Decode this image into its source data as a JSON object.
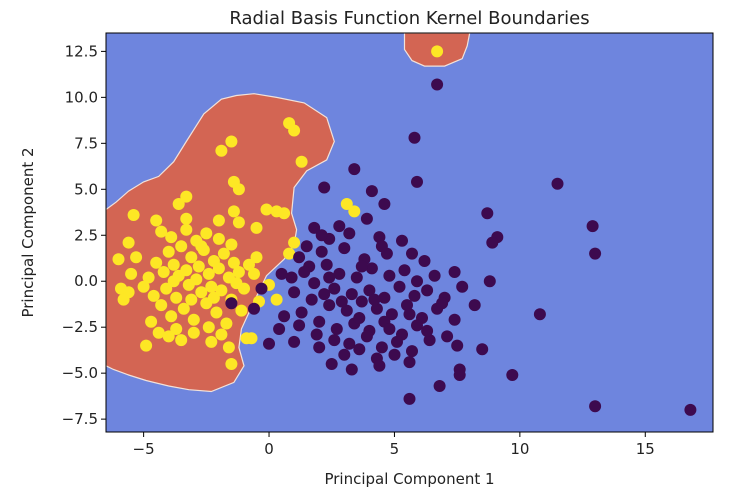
{
  "chart_data": {
    "type": "scatter",
    "title": "Radial Basis Function Kernel Boundaries",
    "xlabel": "Principal Component 1",
    "ylabel": "Principal Component 2",
    "xlim": [
      -6.5,
      17.7
    ],
    "ylim": [
      -8.2,
      13.5
    ],
    "x_ticks": [
      -5,
      0,
      5,
      10,
      15
    ],
    "x_tick_labels": [
      "−5",
      "0",
      "5",
      "10",
      "15"
    ],
    "y_ticks": [
      -7.5,
      -5.0,
      -2.5,
      0.0,
      2.5,
      5.0,
      7.5,
      10.0,
      12.5
    ],
    "y_tick_labels": [
      "−7.5",
      "−5.0",
      "−2.5",
      "0.0",
      "2.5",
      "5.0",
      "7.5",
      "10.0",
      "12.5"
    ],
    "grid": false,
    "colors": {
      "background_region": "#6e85de",
      "decision_region": "#d36553",
      "decision_edge": "#f2e2da",
      "class_0": "#3d0a4f",
      "class_1": "#fde725"
    },
    "decision_regions": [
      {
        "class": 1,
        "polygon": [
          [
            -6.5,
            3.9
          ],
          [
            -6.1,
            4.3
          ],
          [
            -5.6,
            4.9
          ],
          [
            -5.0,
            5.4
          ],
          [
            -4.4,
            5.7
          ],
          [
            -3.8,
            6.5
          ],
          [
            -3.3,
            7.6
          ],
          [
            -2.6,
            9.1
          ],
          [
            -1.9,
            9.9
          ],
          [
            -1.3,
            10.1
          ],
          [
            -0.6,
            10.2
          ],
          [
            0.3,
            10.0
          ],
          [
            1.4,
            9.7
          ],
          [
            2.3,
            8.9
          ],
          [
            2.6,
            7.6
          ],
          [
            2.3,
            6.6
          ],
          [
            1.5,
            6.0
          ],
          [
            1.0,
            5.1
          ],
          [
            0.9,
            3.7
          ],
          [
            1.1,
            2.8
          ],
          [
            1.0,
            2.0
          ],
          [
            0.6,
            1.2
          ],
          [
            -0.1,
            0.3
          ],
          [
            -0.7,
            -1.4
          ],
          [
            -1.1,
            -2.6
          ],
          [
            -1.2,
            -3.6
          ],
          [
            -1.0,
            -4.6
          ],
          [
            -1.4,
            -5.5
          ],
          [
            -2.3,
            -6.0
          ],
          [
            -3.2,
            -5.9
          ],
          [
            -4.0,
            -5.7
          ],
          [
            -4.9,
            -5.4
          ],
          [
            -5.6,
            -5.1
          ],
          [
            -6.2,
            -4.8
          ],
          [
            -6.5,
            -4.6
          ]
        ]
      },
      {
        "class": 1,
        "polygon": [
          [
            5.4,
            13.5
          ],
          [
            5.4,
            12.6
          ],
          [
            5.7,
            12.0
          ],
          [
            6.2,
            11.7
          ],
          [
            7.0,
            11.7
          ],
          [
            7.7,
            12.1
          ],
          [
            7.9,
            12.8
          ],
          [
            8.0,
            13.5
          ]
        ]
      }
    ],
    "series": [
      {
        "class": 1,
        "points": [
          [
            -5.0,
            -0.3
          ],
          [
            -4.8,
            0.2
          ],
          [
            -4.6,
            -0.8
          ],
          [
            -4.5,
            1.0
          ],
          [
            -4.3,
            -1.3
          ],
          [
            -4.2,
            0.5
          ],
          [
            -4.1,
            -0.4
          ],
          [
            -4.0,
            1.6
          ],
          [
            -3.9,
            -1.9
          ],
          [
            -3.8,
            0.9
          ],
          [
            -3.7,
            -0.9
          ],
          [
            -3.6,
            0.3
          ],
          [
            -3.5,
            1.9
          ],
          [
            -3.4,
            -1.5
          ],
          [
            -3.3,
            0.6
          ],
          [
            -3.2,
            -0.2
          ],
          [
            -3.1,
            1.3
          ],
          [
            -3.0,
            -2.1
          ],
          [
            -2.9,
            0.1
          ],
          [
            -2.8,
            0.8
          ],
          [
            -2.7,
            -0.6
          ],
          [
            -2.6,
            1.7
          ],
          [
            -2.5,
            -1.2
          ],
          [
            -2.4,
            0.4
          ],
          [
            -2.3,
            -0.3
          ],
          [
            -2.2,
            1.1
          ],
          [
            -2.1,
            -1.7
          ],
          [
            -2.0,
            0.7
          ],
          [
            -1.9,
            -0.5
          ],
          [
            -1.8,
            1.5
          ],
          [
            -1.7,
            -2.3
          ],
          [
            -1.6,
            0.2
          ],
          [
            -1.5,
            -1.0
          ],
          [
            -1.4,
            1.0
          ],
          [
            -1.3,
            -0.1
          ],
          [
            -1.2,
            0.5
          ],
          [
            -3.9,
            2.4
          ],
          [
            -3.3,
            2.8
          ],
          [
            -2.9,
            2.2
          ],
          [
            -2.5,
            2.6
          ],
          [
            -2.0,
            2.3
          ],
          [
            -1.5,
            2.0
          ],
          [
            -0.8,
            0.9
          ],
          [
            -0.5,
            1.3
          ],
          [
            -4.7,
            -2.2
          ],
          [
            -4.4,
            -2.8
          ],
          [
            -3.7,
            -2.6
          ],
          [
            -3.0,
            -2.8
          ],
          [
            -2.4,
            -2.5
          ],
          [
            -1.9,
            -2.9
          ],
          [
            -5.6,
            -0.6
          ],
          [
            -5.3,
            1.3
          ],
          [
            -3.3,
            3.4
          ],
          [
            -2.0,
            3.3
          ],
          [
            -1.2,
            3.2
          ],
          [
            -0.5,
            2.9
          ],
          [
            0.0,
            -0.2
          ],
          [
            -0.4,
            -1.1
          ],
          [
            -1.1,
            -1.6
          ],
          [
            -3.5,
            -3.2
          ],
          [
            -4.9,
            -3.5
          ],
          [
            -4.0,
            -3.0
          ],
          [
            -2.3,
            -3.3
          ],
          [
            -1.6,
            -3.6
          ],
          [
            -0.9,
            -3.1
          ],
          [
            -1.5,
            -4.5
          ],
          [
            -5.4,
            3.6
          ],
          [
            -4.3,
            2.7
          ],
          [
            -5.6,
            2.1
          ],
          [
            -6.0,
            1.2
          ],
          [
            -5.5,
            0.4
          ],
          [
            -5.9,
            -0.4
          ],
          [
            -5.8,
            -1.0
          ],
          [
            -4.5,
            3.3
          ],
          [
            -3.6,
            4.2
          ],
          [
            -3.3,
            4.6
          ],
          [
            -1.4,
            3.8
          ],
          [
            -1.2,
            5.0
          ],
          [
            -1.4,
            5.4
          ],
          [
            -1.9,
            7.1
          ],
          [
            -1.5,
            7.6
          ],
          [
            0.8,
            8.6
          ],
          [
            1.0,
            8.2
          ],
          [
            1.3,
            6.5
          ],
          [
            -0.1,
            3.9
          ],
          [
            0.3,
            3.8
          ],
          [
            0.6,
            3.7
          ],
          [
            1.0,
            2.1
          ],
          [
            0.8,
            1.5
          ],
          [
            3.1,
            4.2
          ],
          [
            3.4,
            3.8
          ],
          [
            6.7,
            12.5
          ],
          [
            -0.7,
            -3.1
          ],
          [
            0.3,
            -1.0
          ],
          [
            -2.7,
            1.9
          ],
          [
            -3.8,
            0.0
          ],
          [
            -3.1,
            -1.0
          ],
          [
            -2.2,
            -0.9
          ],
          [
            -1.0,
            -0.4
          ],
          [
            -0.6,
            0.4
          ]
        ]
      },
      {
        "class": 0,
        "points": [
          [
            6.7,
            10.7
          ],
          [
            5.8,
            7.8
          ],
          [
            3.4,
            6.1
          ],
          [
            2.2,
            5.1
          ],
          [
            4.1,
            4.9
          ],
          [
            5.9,
            5.4
          ],
          [
            11.5,
            5.3
          ],
          [
            4.6,
            4.2
          ],
          [
            8.7,
            3.7
          ],
          [
            3.9,
            3.4
          ],
          [
            2.8,
            3.0
          ],
          [
            12.9,
            3.0
          ],
          [
            3.2,
            2.6
          ],
          [
            4.4,
            2.4
          ],
          [
            2.4,
            2.3
          ],
          [
            5.3,
            2.2
          ],
          [
            9.1,
            2.4
          ],
          [
            8.9,
            2.1
          ],
          [
            1.5,
            1.9
          ],
          [
            2.1,
            1.6
          ],
          [
            3.0,
            1.8
          ],
          [
            3.8,
            1.2
          ],
          [
            4.7,
            1.5
          ],
          [
            5.7,
            1.5
          ],
          [
            6.2,
            1.1
          ],
          [
            13.0,
            1.5
          ],
          [
            1.2,
            1.3
          ],
          [
            1.6,
            0.8
          ],
          [
            2.3,
            0.9
          ],
          [
            2.8,
            0.4
          ],
          [
            3.5,
            0.2
          ],
          [
            4.1,
            0.7
          ],
          [
            4.8,
            0.3
          ],
          [
            5.4,
            0.6
          ],
          [
            5.9,
            0.0
          ],
          [
            6.6,
            0.3
          ],
          [
            7.4,
            0.5
          ],
          [
            8.8,
            0.0
          ],
          [
            0.9,
            0.2
          ],
          [
            1.8,
            -0.1
          ],
          [
            2.6,
            -0.4
          ],
          [
            3.3,
            -0.7
          ],
          [
            4.0,
            -0.5
          ],
          [
            4.6,
            -0.9
          ],
          [
            5.2,
            -0.3
          ],
          [
            5.8,
            -0.8
          ],
          [
            6.3,
            -0.5
          ],
          [
            7.0,
            -0.9
          ],
          [
            7.7,
            -0.3
          ],
          [
            1.0,
            -0.6
          ],
          [
            1.7,
            -1.0
          ],
          [
            2.4,
            -1.3
          ],
          [
            3.1,
            -1.6
          ],
          [
            3.7,
            -1.1
          ],
          [
            4.3,
            -1.5
          ],
          [
            4.9,
            -1.8
          ],
          [
            5.5,
            -1.3
          ],
          [
            6.1,
            -2.0
          ],
          [
            6.7,
            -1.5
          ],
          [
            7.4,
            -2.1
          ],
          [
            8.2,
            -1.3
          ],
          [
            1.3,
            -1.7
          ],
          [
            2.0,
            -2.2
          ],
          [
            2.7,
            -2.6
          ],
          [
            3.4,
            -2.3
          ],
          [
            4.0,
            -2.7
          ],
          [
            4.6,
            -2.2
          ],
          [
            5.3,
            -2.9
          ],
          [
            5.9,
            -2.4
          ],
          [
            7.1,
            -3.0
          ],
          [
            0.4,
            -2.6
          ],
          [
            1.2,
            -2.4
          ],
          [
            1.9,
            -2.9
          ],
          [
            2.6,
            -3.2
          ],
          [
            3.2,
            -3.4
          ],
          [
            3.9,
            -3.0
          ],
          [
            4.5,
            -3.6
          ],
          [
            5.1,
            -3.3
          ],
          [
            5.7,
            -3.8
          ],
          [
            6.4,
            -3.2
          ],
          [
            7.5,
            -3.5
          ],
          [
            8.5,
            -3.7
          ],
          [
            10.8,
            -1.8
          ],
          [
            0.0,
            -3.4
          ],
          [
            1.0,
            -3.3
          ],
          [
            2.0,
            -3.6
          ],
          [
            3.0,
            -4.0
          ],
          [
            3.6,
            -3.7
          ],
          [
            4.3,
            -4.2
          ],
          [
            5.0,
            -4.0
          ],
          [
            5.6,
            -4.4
          ],
          [
            2.5,
            -4.5
          ],
          [
            3.3,
            -4.8
          ],
          [
            4.4,
            -4.6
          ],
          [
            7.6,
            -4.8
          ],
          [
            7.6,
            -5.1
          ],
          [
            9.7,
            -5.1
          ],
          [
            6.8,
            -5.7
          ],
          [
            5.6,
            -6.4
          ],
          [
            13.0,
            -6.8
          ],
          [
            16.8,
            -7.0
          ],
          [
            -0.6,
            -1.5
          ],
          [
            -1.5,
            -1.2
          ],
          [
            -0.3,
            -0.4
          ],
          [
            0.5,
            0.4
          ],
          [
            1.4,
            0.5
          ],
          [
            2.2,
            -0.7
          ],
          [
            2.9,
            -1.1
          ],
          [
            3.6,
            -2.0
          ],
          [
            4.2,
            -1.0
          ],
          [
            4.8,
            -2.6
          ],
          [
            5.6,
            -1.8
          ],
          [
            6.3,
            -2.7
          ],
          [
            6.9,
            -1.2
          ],
          [
            2.1,
            2.5
          ],
          [
            1.8,
            2.9
          ],
          [
            3.7,
            0.8
          ],
          [
            4.5,
            1.9
          ],
          [
            2.4,
            0.2
          ],
          [
            0.6,
            -1.9
          ]
        ]
      }
    ]
  }
}
